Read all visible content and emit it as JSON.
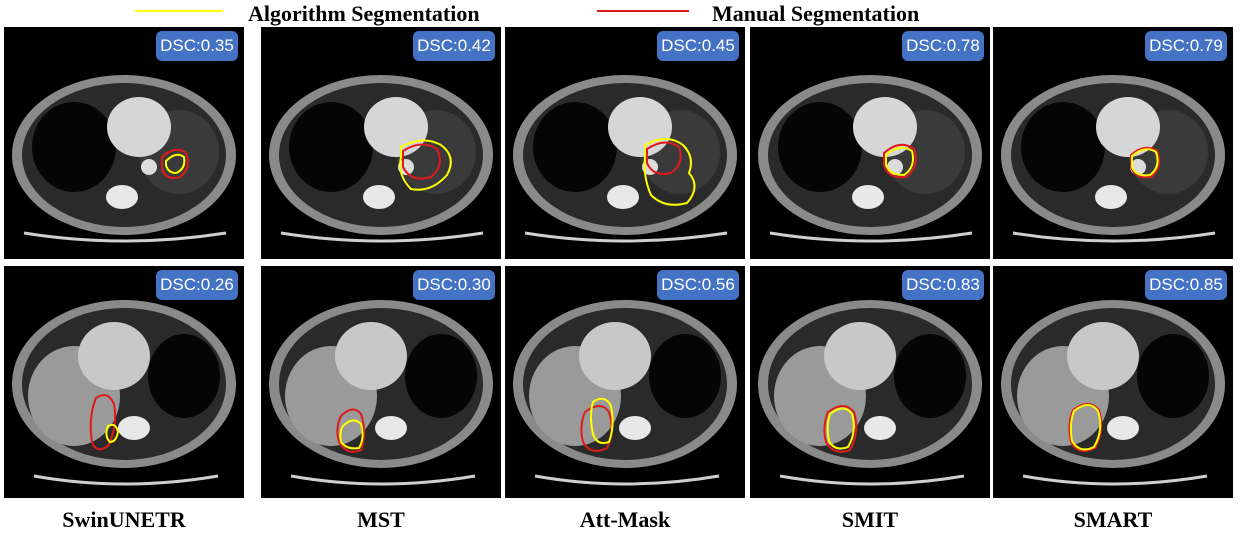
{
  "legend": {
    "algorithm_label": "Algorithm Segmentation",
    "algorithm_color": "#ffff00",
    "manual_label": "Manual Segmentation",
    "manual_color": "#e01a1a"
  },
  "methods": [
    "SwinUNETR",
    "MST",
    "Att-Mask",
    "SMIT",
    "SMART"
  ],
  "rows": [
    {
      "scan": "upper-axial-ct-slice",
      "dsc": [
        "DSC:0.35",
        "DSC:0.42",
        "DSC:0.45",
        "DSC:0.78",
        "DSC:0.79"
      ]
    },
    {
      "scan": "lower-axial-ct-slice",
      "dsc": [
        "DSC:0.26",
        "DSC:0.30",
        "DSC:0.56",
        "DSC:0.83",
        "DSC:0.85"
      ]
    }
  ],
  "colors": {
    "dsc_badge": "#4472c4"
  }
}
